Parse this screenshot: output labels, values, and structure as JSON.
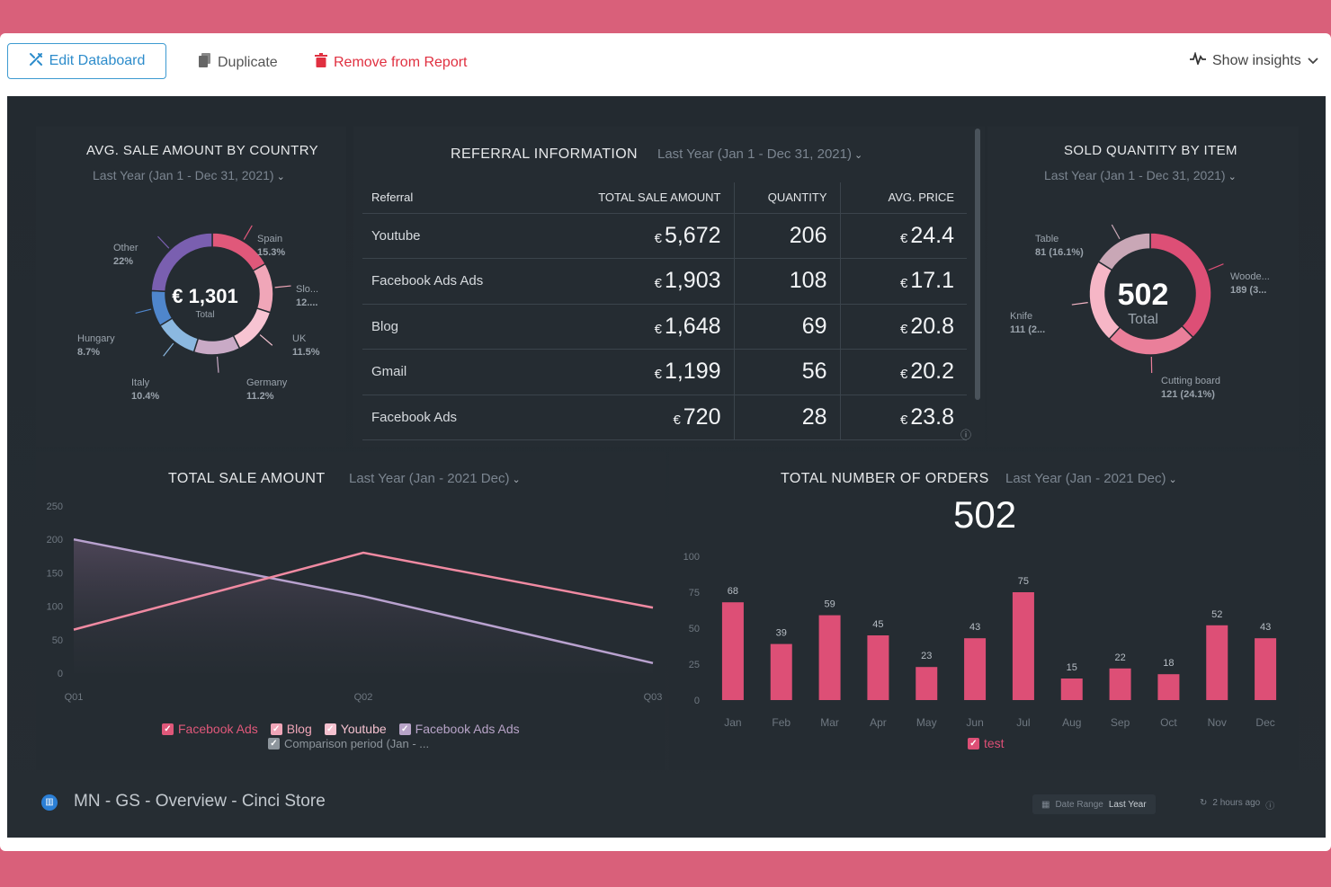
{
  "toolbar": {
    "edit_label": "Edit Databoard",
    "duplicate_label": "Duplicate",
    "remove_label": "Remove from Report",
    "insights_label": "Show insights"
  },
  "colors": {
    "frame": "#d9607a",
    "accent_blue": "#2d8ccb",
    "danger": "#e03040",
    "bar": "#dd4f76",
    "dashboard_bg": "#232a30"
  },
  "avg_sale": {
    "title": "AVG. SALE AMOUNT BY COUNTRY",
    "date": "Last Year (Jan 1 - Dec 31, 2021)",
    "total_value": "€ 1,301",
    "total_label": "Total",
    "labels": [
      {
        "name": "Spain",
        "value": "15.3%"
      },
      {
        "name": "Slo...",
        "value": "12...."
      },
      {
        "name": "UK",
        "value": "11.5%"
      },
      {
        "name": "Germany",
        "value": "11.2%"
      },
      {
        "name": "Italy",
        "value": "10.4%"
      },
      {
        "name": "Hungary",
        "value": "8.7%"
      },
      {
        "name": "Other",
        "value": "22%"
      }
    ]
  },
  "referral": {
    "title": "REFERRAL INFORMATION",
    "date": "Last Year (Jan 1 - Dec 31, 2021)",
    "headers": [
      "Referral",
      "TOTAL SALE AMOUNT",
      "QUANTITY",
      "AVG. PRICE"
    ],
    "currency": "€",
    "rows": [
      {
        "referral": "Youtube",
        "total": "5,672",
        "quantity": "206",
        "avg": "24.4"
      },
      {
        "referral": "Facebook Ads Ads",
        "total": "1,903",
        "quantity": "108",
        "avg": "17.1"
      },
      {
        "referral": "Blog",
        "total": "1,648",
        "quantity": "69",
        "avg": "20.8"
      },
      {
        "referral": "Gmail",
        "total": "1,199",
        "quantity": "56",
        "avg": "20.2"
      },
      {
        "referral": "Facebook Ads",
        "total": "720",
        "quantity": "28",
        "avg": "23.8"
      }
    ]
  },
  "sold_qty": {
    "title": "SOLD QUANTITY BY ITEM",
    "date": "Last Year (Jan 1 - Dec 31, 2021)",
    "total_value": "502",
    "total_label": "Total",
    "labels": [
      {
        "name": "Table",
        "value": "81 (16.1%)"
      },
      {
        "name": "Woode...",
        "value": "189 (3..."
      },
      {
        "name": "Knife",
        "value": "111 (2..."
      },
      {
        "name": "Cutting board",
        "value": "121 (24.1%)"
      }
    ]
  },
  "total_sale": {
    "title": "TOTAL SALE AMOUNT",
    "date": "Last Year (Jan - 2021 Dec)",
    "legend": [
      {
        "label": "Facebook Ads",
        "color": "#e0587a"
      },
      {
        "label": "Blog",
        "color": "#f0a6b8"
      },
      {
        "label": "Youtube",
        "color": "#f4c1cf"
      },
      {
        "label": "Facebook Ads Ads",
        "color": "#b8a4c8"
      }
    ],
    "comparison_label": "Comparison period (Jan - ..."
  },
  "orders": {
    "title": "TOTAL NUMBER OF ORDERS",
    "date": "Last Year (Jan - 2021 Dec)",
    "total": "502",
    "legend_label": "test"
  },
  "chart_data": [
    {
      "type": "pie",
      "title": "AVG. SALE AMOUNT BY COUNTRY",
      "categories": [
        "Spain",
        "Slo...",
        "UK",
        "Germany",
        "Italy",
        "Hungary",
        "Other"
      ],
      "values": [
        15.3,
        12.0,
        11.5,
        11.2,
        10.4,
        8.7,
        22
      ],
      "colors": [
        "#e0587a",
        "#f0a6b8",
        "#f7c4d2",
        "#c9aac6",
        "#8bb8e0",
        "#4f86cc",
        "#7a5fb0"
      ]
    },
    {
      "type": "pie",
      "title": "SOLD QUANTITY BY ITEM",
      "categories": [
        "Woode...",
        "Cutting board",
        "Knife",
        "Table"
      ],
      "values": [
        189,
        121,
        111,
        81
      ],
      "colors": [
        "#dd4f76",
        "#ea7f9a",
        "#f6b6c6",
        "#c9a7b6"
      ]
    },
    {
      "type": "area",
      "title": "TOTAL SALE AMOUNT",
      "categories": [
        "Q01",
        "Q02",
        "Q03"
      ],
      "ylim": [
        0,
        250
      ],
      "yticks": [
        0,
        50,
        100,
        150,
        200,
        250
      ],
      "series": [
        {
          "name": "Facebook Ads",
          "values": [
            65,
            180,
            98
          ],
          "color": "#f08aa2"
        },
        {
          "name": "Comparison period (Jan - ...",
          "values": [
            200,
            115,
            15
          ],
          "color": "#b9a2cf"
        }
      ]
    },
    {
      "type": "bar",
      "title": "TOTAL NUMBER OF ORDERS",
      "categories": [
        "Jan",
        "Feb",
        "Mar",
        "Apr",
        "May",
        "Jun",
        "Jul",
        "Aug",
        "Sep",
        "Oct",
        "Nov",
        "Dec"
      ],
      "values": [
        68,
        39,
        59,
        45,
        23,
        43,
        75,
        15,
        22,
        18,
        52,
        43
      ],
      "ylim": [
        0,
        100
      ],
      "yticks": [
        0,
        25,
        50,
        75,
        100
      ],
      "series": [
        {
          "name": "test",
          "values": [
            68,
            39,
            59,
            45,
            23,
            43,
            75,
            15,
            22,
            18,
            52,
            43
          ]
        }
      ]
    }
  ],
  "footer": {
    "title": "MN - GS - Overview - Cinci Store",
    "date_range_label": "Date Range",
    "date_range_value": "Last Year",
    "updated": "2 hours ago"
  }
}
